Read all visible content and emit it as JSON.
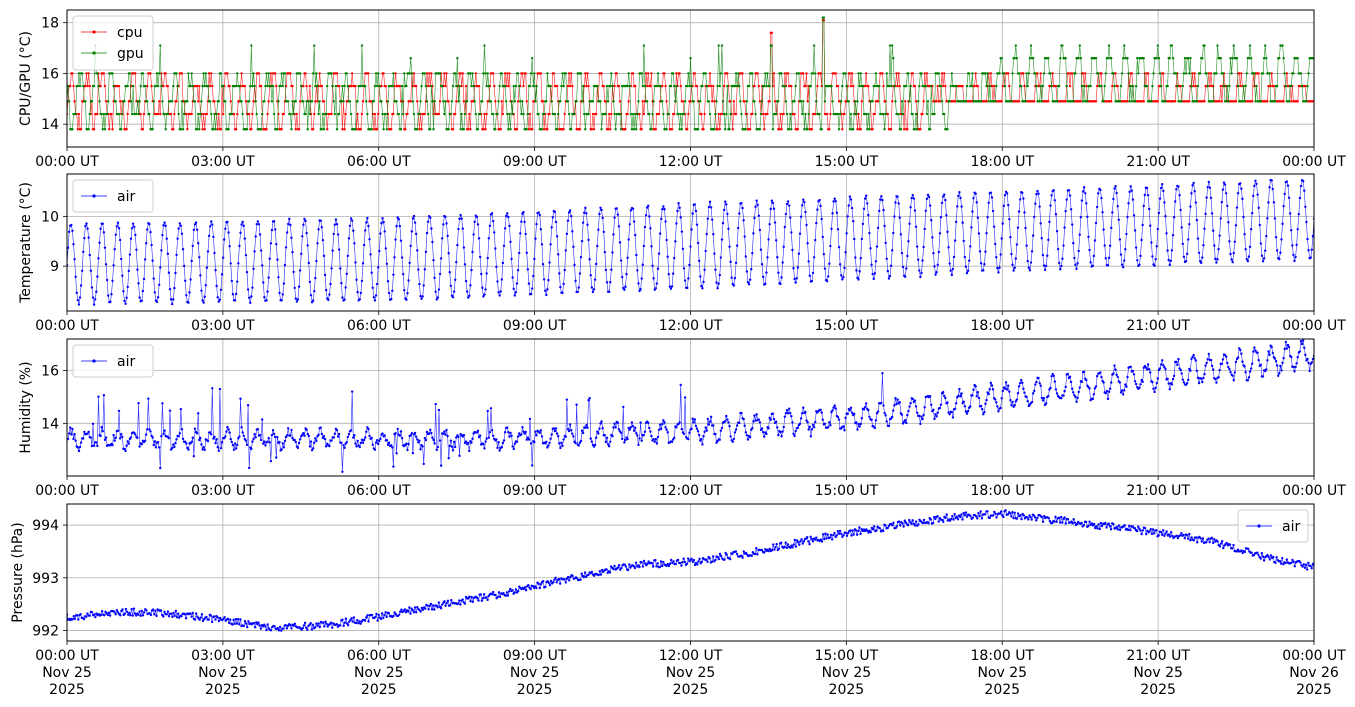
{
  "chart_data": [
    {
      "type": "line",
      "ylabel": "CPU/GPU (°C)",
      "ylim": [
        13.1,
        18.5
      ],
      "yticks": [
        14,
        16,
        18
      ],
      "xticks": [
        "00:00 UT",
        "03:00 UT",
        "06:00 UT",
        "09:00 UT",
        "12:00 UT",
        "15:00 UT",
        "18:00 UT",
        "21:00 UT",
        "00:00 UT"
      ],
      "x_range_hours": [
        0,
        24
      ],
      "grid": true,
      "legend": "upper left",
      "series": [
        {
          "name": "cpu",
          "color": "#ff0000",
          "pattern": "quantized readings cycling between 13.8 and 16.0 °C",
          "levels": [
            13.8,
            14.4,
            14.9,
            15.5,
            16.0
          ],
          "spikes": [
            {
              "x": 13.55,
              "y": 17.6
            },
            {
              "x": 14.55,
              "y": 18.1
            }
          ]
        },
        {
          "name": "gpu",
          "color": "#008000",
          "pattern": "quantized readings cycling between 13.8 and 16.0 °C, rising to 14.9–17.1 °C after about 17:00",
          "levels": [
            13.8,
            14.4,
            14.9,
            15.5,
            16.0,
            16.6,
            17.1
          ],
          "spikes": [
            {
              "x": 14.55,
              "y": 18.2
            },
            {
              "x": 13.55,
              "y": 17.1
            }
          ]
        }
      ]
    },
    {
      "type": "line",
      "ylabel": "Temperature (°C)",
      "ylim": [
        8.1,
        10.85
      ],
      "yticks": [
        9,
        10
      ],
      "xticks": [
        "00:00 UT",
        "03:00 UT",
        "06:00 UT",
        "09:00 UT",
        "12:00 UT",
        "15:00 UT",
        "18:00 UT",
        "21:00 UT",
        "00:00 UT"
      ],
      "grid": true,
      "legend": "upper left",
      "series": [
        {
          "name": "air",
          "color": "#0000ff",
          "period_minutes": 18,
          "min": [
            [
              0,
              8.25
            ],
            [
              6,
              8.3
            ],
            [
              12,
              8.55
            ],
            [
              18,
              8.9
            ],
            [
              24,
              9.15
            ]
          ],
          "max": [
            [
              0,
              9.85
            ],
            [
              6,
              9.95
            ],
            [
              12,
              10.25
            ],
            [
              18,
              10.5
            ],
            [
              24,
              10.75
            ]
          ]
        }
      ]
    },
    {
      "type": "line",
      "ylabel": "Humidity (%)",
      "ylim": [
        12.0,
        17.2
      ],
      "yticks": [
        14,
        16
      ],
      "xticks": [
        "00:00 UT",
        "03:00 UT",
        "06:00 UT",
        "09:00 UT",
        "12:00 UT",
        "15:00 UT",
        "18:00 UT",
        "21:00 UT",
        "00:00 UT"
      ],
      "grid": true,
      "legend": "upper left",
      "series": [
        {
          "name": "air",
          "color": "#0000ff",
          "period_minutes": 18,
          "center": [
            [
              0,
              13.4
            ],
            [
              8,
              13.4
            ],
            [
              12,
              13.7
            ],
            [
              15,
              14.2
            ],
            [
              18,
              15.0
            ],
            [
              21,
              15.8
            ],
            [
              24,
              16.6
            ]
          ],
          "amplitude": [
            [
              0,
              0.3
            ],
            [
              8,
              0.3
            ],
            [
              12,
              0.4
            ],
            [
              18,
              0.45
            ],
            [
              24,
              0.5
            ]
          ],
          "spikes": [
            {
              "x": 2.95,
              "y": 15.3
            },
            {
              "x": 8.95,
              "y": 12.4
            },
            {
              "x": 15.7,
              "y": 15.9
            },
            {
              "x": 1.8,
              "y": 12.3
            }
          ]
        }
      ]
    },
    {
      "type": "line",
      "ylabel": "Pressure (hPa)",
      "ylim": [
        991.8,
        994.4
      ],
      "yticks": [
        992,
        993,
        994
      ],
      "xticks": [
        "00:00 UT\nNov 25\n2025",
        "03:00 UT\nNov 25\n2025",
        "06:00 UT\nNov 25\n2025",
        "09:00 UT\nNov 25\n2025",
        "12:00 UT\nNov 25\n2025",
        "15:00 UT\nNov 25\n2025",
        "18:00 UT\nNov 25\n2025",
        "21:00 UT\nNov 25\n2025",
        "00:00 UT\nNov 26\n2025"
      ],
      "grid": true,
      "legend": "upper right",
      "series": [
        {
          "name": "air",
          "color": "#0000ff",
          "x_hours": [
            0,
            1,
            2,
            3,
            4,
            5,
            6,
            7,
            8,
            9,
            10,
            11,
            12,
            13,
            14,
            15,
            16,
            17,
            18,
            19,
            20,
            21,
            22,
            23,
            24
          ],
          "y": [
            992.25,
            992.35,
            992.33,
            992.2,
            992.05,
            992.1,
            992.25,
            992.45,
            992.62,
            992.85,
            993.05,
            993.25,
            993.3,
            993.45,
            993.65,
            993.85,
            994.0,
            994.15,
            994.22,
            994.1,
            993.98,
            993.85,
            993.7,
            993.4,
            993.2
          ]
        }
      ]
    }
  ]
}
